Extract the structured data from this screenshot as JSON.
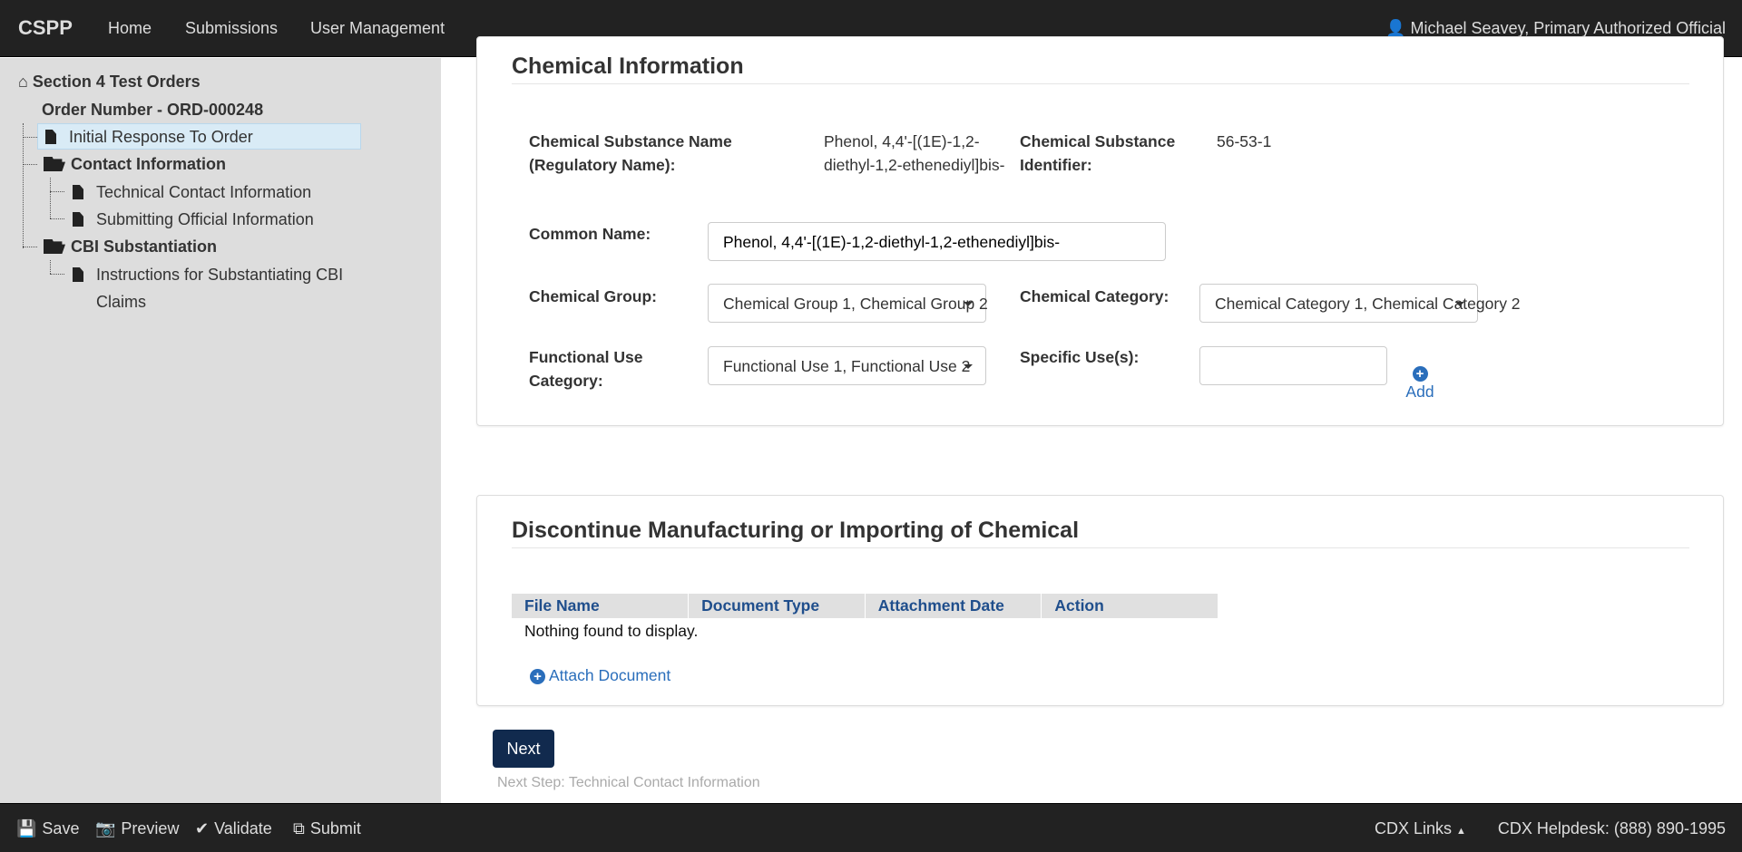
{
  "nav": {
    "brand": "CSPP",
    "links": [
      "Home",
      "Submissions",
      "User Management"
    ],
    "user": "Michael Seavey, Primary Authorized Official"
  },
  "sidebar": {
    "root": "Section 4 Test Orders",
    "order": "Order Number - ORD-000248",
    "items": {
      "initial": "Initial Response To Order",
      "contact": "Contact Information",
      "technical": "Technical Contact Information",
      "submitting": "Submitting Official Information",
      "cbi": "CBI Substantiation",
      "instructions1": "Instructions for Substantiating CBI",
      "instructions2": "Claims"
    }
  },
  "chemical": {
    "title": "Chemical Information",
    "substance_name_label": "Chemical Substance Name (Regulatory Name):",
    "substance_name_value": "Phenol, 4,4'-[(1E)-1,2-diethyl-1,2-ethenediyl]bis-",
    "identifier_label": "Chemical Substance Identifier:",
    "identifier_value": "56-53-1",
    "common_name_label": "Common Name:",
    "common_name_value": "Phenol, 4,4'-[(1E)-1,2-diethyl-1,2-ethenediyl]bis-",
    "group_label": "Chemical Group:",
    "group_value": "Chemical Group 1, Chemical Group 2",
    "category_label": "Chemical Category:",
    "category_value": "Chemical Category 1, Chemical Category 2",
    "functional_label": "Functional Use Category:",
    "functional_value": "Functional Use 1, Functional Use 2",
    "specific_label": "Specific Use(s):",
    "specific_value": "",
    "add_label": "Add"
  },
  "discontinue": {
    "title": "Discontinue Manufacturing or Importing of Chemical",
    "columns": [
      "File Name",
      "Document Type",
      "Attachment Date",
      "Action"
    ],
    "empty": "Nothing found to display.",
    "attach": "Attach Document"
  },
  "next": {
    "label": "Next",
    "step": "Next Step: Technical Contact Information"
  },
  "footer": {
    "save": "Save",
    "preview": "Preview",
    "validate": "Validate",
    "submit": "Submit",
    "cdx_links": "CDX Links",
    "helpdesk": "CDX Helpdesk: (888) 890-1995"
  }
}
